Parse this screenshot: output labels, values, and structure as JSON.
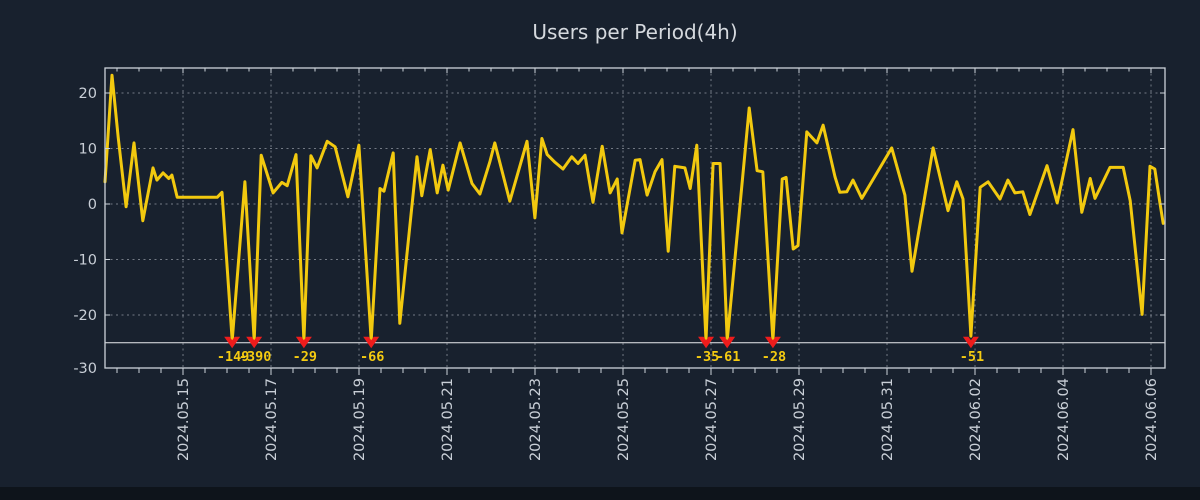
{
  "window": {
    "background_color": "#18212e",
    "bottom_strip_color": "#0e141b"
  },
  "chart_data": {
    "type": "line",
    "title": "Users per Period(4h)",
    "sampling_period": "4h",
    "legend_position": "none",
    "grid": true,
    "series_name": "Users",
    "series_color": "#f2c90f",
    "axis_color": "#cdd3da",
    "grid_color": "#8a919b",
    "tick_label_color": "#c9cfd7",
    "title_color": "#d5d9de",
    "y_ticks": [
      20,
      10,
      0,
      -10,
      -20,
      -30
    ],
    "y_tick_labels": [
      "20",
      "10",
      "0",
      "-10",
      "-20",
      "-30"
    ],
    "ylim": [
      -29.6,
      24.6
    ],
    "x_tick_labels": [
      "2024.05.15",
      "2024.05.17",
      "2024.05.19",
      "2024.05.21",
      "2024.05.23",
      "2024.05.25",
      "2024.05.27",
      "2024.05.29",
      "2024.05.31",
      "2024.06.02",
      "2024.06.04",
      "2024.06.06"
    ],
    "x_first_tick_day_offset": 1.773,
    "x_tick_interval_days": 2,
    "x_minor_tick_interval_days": 0.5,
    "x_range_days": [
      0,
      24.09
    ],
    "threshold": {
      "value": -25,
      "color": "#e9ebee"
    },
    "marker_color": "#ee1c1c",
    "marker_label_color": "#f5cb11",
    "markers": [
      {
        "day": 2.89,
        "label": "-149"
      },
      {
        "day": 3.39,
        "label": "-390"
      },
      {
        "day": 4.52,
        "label": "-29"
      },
      {
        "day": 6.05,
        "label": "-66"
      },
      {
        "day": 13.66,
        "label": "-35"
      },
      {
        "day": 14.14,
        "label": "-61"
      },
      {
        "day": 15.18,
        "label": "-28"
      },
      {
        "day": 19.68,
        "label": "-51"
      }
    ],
    "points": [
      [
        0.0,
        4.0
      ],
      [
        0.16,
        23.2
      ],
      [
        0.3,
        12.0
      ],
      [
        0.48,
        -0.5
      ],
      [
        0.66,
        11.0
      ],
      [
        0.86,
        -3.0
      ],
      [
        1.09,
        6.5
      ],
      [
        1.18,
        4.3
      ],
      [
        1.32,
        5.6
      ],
      [
        1.45,
        4.6
      ],
      [
        1.52,
        5.2
      ],
      [
        1.64,
        1.2
      ],
      [
        2.55,
        1.2
      ],
      [
        2.66,
        2.1
      ],
      [
        2.89,
        -24.6
      ],
      [
        3.18,
        4.0
      ],
      [
        3.39,
        -24.6
      ],
      [
        3.55,
        8.8
      ],
      [
        3.82,
        2.0
      ],
      [
        4.02,
        3.9
      ],
      [
        4.14,
        3.3
      ],
      [
        4.34,
        8.9
      ],
      [
        4.52,
        -24.6
      ],
      [
        4.68,
        8.7
      ],
      [
        4.82,
        6.5
      ],
      [
        5.05,
        11.3
      ],
      [
        5.23,
        10.3
      ],
      [
        5.52,
        1.3
      ],
      [
        5.77,
        10.6
      ],
      [
        6.05,
        -24.6
      ],
      [
        6.25,
        2.8
      ],
      [
        6.34,
        2.3
      ],
      [
        6.55,
        9.2
      ],
      [
        6.7,
        -21.5
      ],
      [
        7.09,
        8.5
      ],
      [
        7.2,
        1.5
      ],
      [
        7.39,
        9.8
      ],
      [
        7.55,
        2.0
      ],
      [
        7.68,
        7.0
      ],
      [
        7.8,
        2.5
      ],
      [
        8.07,
        11.0
      ],
      [
        8.34,
        3.7
      ],
      [
        8.52,
        1.8
      ],
      [
        8.75,
        7.7
      ],
      [
        8.86,
        11.0
      ],
      [
        9.2,
        0.5
      ],
      [
        9.59,
        11.3
      ],
      [
        9.77,
        -2.5
      ],
      [
        9.93,
        11.8
      ],
      [
        10.05,
        8.9
      ],
      [
        10.23,
        7.5
      ],
      [
        10.41,
        6.3
      ],
      [
        10.61,
        8.5
      ],
      [
        10.75,
        7.3
      ],
      [
        10.91,
        8.8
      ],
      [
        11.09,
        0.3
      ],
      [
        11.3,
        10.4
      ],
      [
        11.48,
        2.0
      ],
      [
        11.64,
        4.5
      ],
      [
        11.75,
        -5.2
      ],
      [
        12.05,
        7.9
      ],
      [
        12.16,
        8.0
      ],
      [
        12.32,
        1.6
      ],
      [
        12.5,
        5.8
      ],
      [
        12.66,
        8.0
      ],
      [
        12.8,
        -8.5
      ],
      [
        12.95,
        6.8
      ],
      [
        13.18,
        6.5
      ],
      [
        13.3,
        2.8
      ],
      [
        13.45,
        10.6
      ],
      [
        13.66,
        -24.6
      ],
      [
        13.82,
        7.3
      ],
      [
        13.98,
        7.3
      ],
      [
        14.14,
        -24.6
      ],
      [
        14.64,
        17.3
      ],
      [
        14.82,
        6.0
      ],
      [
        14.95,
        5.8
      ],
      [
        15.18,
        -24.6
      ],
      [
        15.39,
        4.5
      ],
      [
        15.48,
        4.8
      ],
      [
        15.64,
        -8.1
      ],
      [
        15.75,
        -7.5
      ],
      [
        15.95,
        13.0
      ],
      [
        16.18,
        11.0
      ],
      [
        16.32,
        14.2
      ],
      [
        16.59,
        4.9
      ],
      [
        16.7,
        2.1
      ],
      [
        16.86,
        2.2
      ],
      [
        17.0,
        4.3
      ],
      [
        17.2,
        1.0
      ],
      [
        17.88,
        10.1
      ],
      [
        18.18,
        1.6
      ],
      [
        18.34,
        -12.1
      ],
      [
        18.82,
        10.1
      ],
      [
        19.16,
        -1.2
      ],
      [
        19.36,
        4.0
      ],
      [
        19.5,
        0.9
      ],
      [
        19.68,
        -23.8
      ],
      [
        19.89,
        3.0
      ],
      [
        20.07,
        4.0
      ],
      [
        20.34,
        0.9
      ],
      [
        20.52,
        4.3
      ],
      [
        20.68,
        2.0
      ],
      [
        20.86,
        2.2
      ],
      [
        21.02,
        -1.9
      ],
      [
        21.41,
        6.9
      ],
      [
        21.64,
        0.2
      ],
      [
        22.0,
        13.4
      ],
      [
        22.2,
        -1.5
      ],
      [
        22.39,
        4.6
      ],
      [
        22.5,
        1.0
      ],
      [
        22.84,
        6.6
      ],
      [
        23.14,
        6.6
      ],
      [
        23.3,
        0.6
      ],
      [
        23.57,
        -19.9
      ],
      [
        23.75,
        6.8
      ],
      [
        23.86,
        6.3
      ],
      [
        23.98,
        0.0
      ],
      [
        24.05,
        -3.5
      ]
    ]
  }
}
